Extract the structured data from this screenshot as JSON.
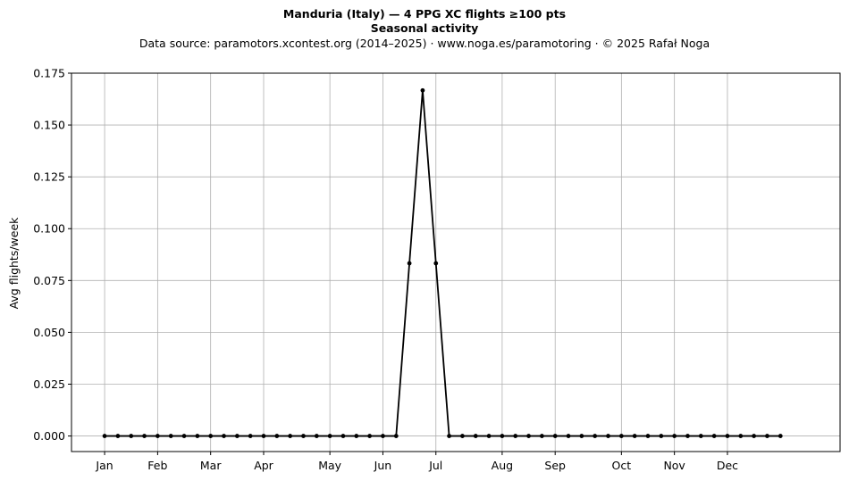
{
  "chart_data": {
    "type": "line",
    "title": "Manduria (Italy)  —  4 PPG XC flights ≥100 pts",
    "title2": "Seasonal activity",
    "subtitle": "Data source: paramotors.xcontest.org (2014–2025)  ·  www.noga.es/paramotoring  ·  © 2025 Rafał Noga",
    "ylabel": "Avg flights/week",
    "xlabel": "",
    "grid": true,
    "ylim": [
      -0.0075,
      0.175
    ],
    "xlim": [
      -2.5,
      55.5
    ],
    "yticks": [
      0.0,
      0.025,
      0.05,
      0.075,
      0.1,
      0.125,
      0.15,
      0.175
    ],
    "ytick_labels": [
      "0.000",
      "0.025",
      "0.050",
      "0.075",
      "0.100",
      "0.125",
      "0.150",
      "0.175"
    ],
    "xticks": [
      0,
      4,
      8,
      12,
      17,
      21,
      25,
      30,
      34,
      39,
      43,
      47
    ],
    "xtick_labels": [
      "Jan",
      "Feb",
      "Mar",
      "Apr",
      "May",
      "Jun",
      "Jul",
      "Aug",
      "Sep",
      "Oct",
      "Nov",
      "Dec"
    ],
    "series": [
      {
        "color": "#000000",
        "x": [
          0,
          1,
          2,
          3,
          4,
          5,
          6,
          7,
          8,
          9,
          10,
          11,
          12,
          13,
          14,
          15,
          16,
          17,
          18,
          19,
          20,
          21,
          22,
          23,
          24,
          25,
          26,
          27,
          28,
          29,
          30,
          31,
          32,
          33,
          34,
          35,
          36,
          37,
          38,
          39,
          40,
          41,
          42,
          43,
          44,
          45,
          46,
          47,
          48,
          49,
          50,
          51
        ],
        "values": [
          0,
          0,
          0,
          0,
          0,
          0,
          0,
          0,
          0,
          0,
          0,
          0,
          0,
          0,
          0,
          0,
          0,
          0,
          0,
          0,
          0,
          0,
          0,
          0.0833,
          0.1667,
          0.0833,
          0,
          0,
          0,
          0,
          0,
          0,
          0,
          0,
          0,
          0,
          0,
          0,
          0,
          0,
          0,
          0,
          0,
          0,
          0,
          0,
          0,
          0,
          0,
          0,
          0,
          0
        ]
      }
    ]
  }
}
